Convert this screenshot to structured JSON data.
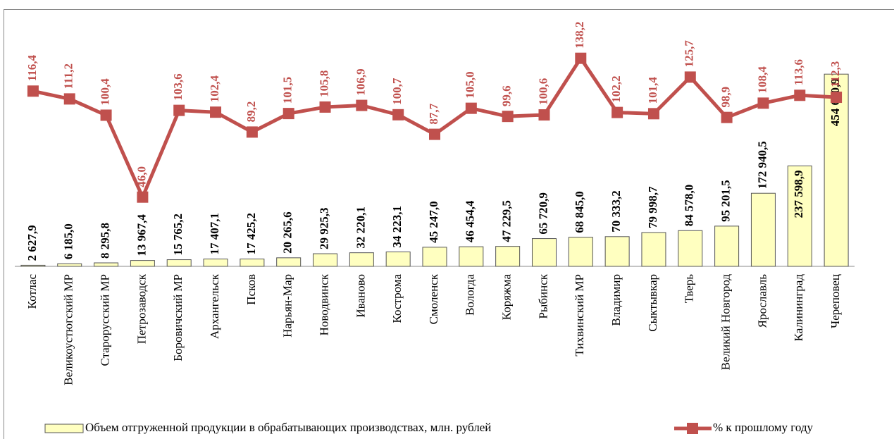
{
  "chart_data": {
    "type": "bar",
    "categories": [
      "Котлас",
      "Великоустюгский МР",
      "Старорусский МР",
      "Петрозаводск",
      "Боровичский МР",
      "Архангельск",
      "Псков",
      "Нарьян-Мар",
      "Новодвинск",
      "Иваново",
      "Кострома",
      "Смоленск",
      "Вологда",
      "Коряжма",
      "Рыбинск",
      "Тихвинский МР",
      "Владимир",
      "Сыктывкар",
      "Тверь",
      "Великий Новгород",
      "Ярославль",
      "Калининград",
      "Череповец"
    ],
    "series": [
      {
        "name": "Объем отгруженной продукции в обрабатывающих производствах, млн. рублей",
        "type": "bar",
        "color": "#ffffc0",
        "values": [
          2627.9,
          6185.0,
          8295.8,
          13967.4,
          15765.2,
          17407.1,
          17425.2,
          20265.6,
          29925.3,
          32220.1,
          34223.1,
          45247.0,
          46454.4,
          47229.5,
          65720.9,
          68845.0,
          70333.2,
          79998.7,
          84578.0,
          95201.5,
          172940.5,
          237598.9,
          454660.9
        ],
        "value_labels": [
          "2 627,9",
          "6 185,0",
          "8 295,8",
          "13 967,4",
          "15 765,2",
          "17 407,1",
          "17 425,2",
          "20 265,6",
          "29 925,3",
          "32 220,1",
          "34 223,1",
          "45 247,0",
          "46 454,4",
          "47 229,5",
          "65 720,9",
          "68 845,0",
          "70 333,2",
          "79 998,7",
          "84 578,0",
          "95 201,5",
          "172 940,5",
          "237 598,9",
          "454 660,9"
        ]
      },
      {
        "name": "% к прошлому году",
        "type": "line",
        "axis": "y2",
        "color": "#c0504d",
        "values": [
          116.4,
          111.2,
          100.4,
          46.0,
          103.6,
          102.4,
          89.2,
          101.5,
          105.8,
          106.9,
          100.7,
          87.7,
          105.0,
          99.6,
          100.6,
          138.2,
          102.2,
          101.4,
          125.7,
          98.9,
          108.4,
          113.6,
          112.3
        ],
        "value_labels": [
          "116,4",
          "111,2",
          "100,4",
          "46,0",
          "103,6",
          "102,4",
          "89,2",
          "101,5",
          "105,8",
          "106,9",
          "100,7",
          "87,7",
          "105,0",
          "99,6",
          "100,6",
          "138,2",
          "102,2",
          "101,4",
          "125,7",
          "98,9",
          "108,4",
          "113,6",
          "112,3"
        ]
      }
    ],
    "ylim": [
      0,
      500000
    ],
    "y2lim": [
      0,
      140.4
    ],
    "legend": "bottom"
  }
}
